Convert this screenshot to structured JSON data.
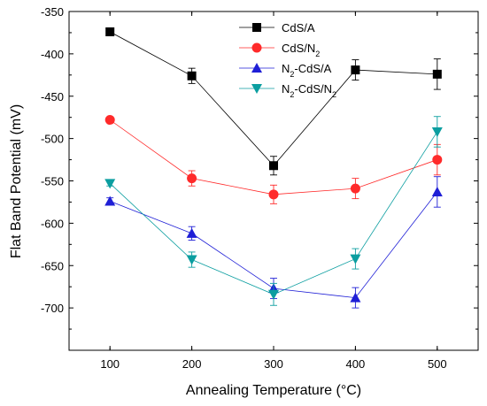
{
  "chart_data": {
    "type": "line",
    "xlabel": "Annealing Temperature (°C)",
    "ylabel": "Flat Band Potential (mV)",
    "x": [
      100,
      200,
      300,
      400,
      500
    ],
    "xlim": [
      50,
      550
    ],
    "ylim": [
      -750,
      -350
    ],
    "xticks": [
      100,
      200,
      300,
      400,
      500
    ],
    "yticks": [
      -350,
      -400,
      -450,
      -500,
      -550,
      -600,
      -650,
      -700
    ],
    "legend_position": "top-right",
    "series": [
      {
        "name": "CdS/A",
        "name_parts": [
          "CdS/A"
        ],
        "color": "#000000",
        "marker": "square",
        "values": [
          -374,
          -426,
          -532,
          -419,
          -424
        ],
        "errors": [
          4,
          9,
          11,
          12,
          18
        ]
      },
      {
        "name": "CdS/N2",
        "name_parts": [
          "CdS/N",
          "2",
          ""
        ],
        "color": "#ff2a2a",
        "marker": "circle",
        "values": [
          -478,
          -547,
          -566,
          -559,
          -525
        ],
        "errors": [
          3,
          9,
          11,
          12,
          18
        ]
      },
      {
        "name": "N2-CdS/A",
        "name_parts": [
          "N",
          "2",
          "-CdS/A"
        ],
        "color": "#1f1fd6",
        "marker": "triangle-up",
        "values": [
          -574,
          -612,
          -677,
          -688,
          -563
        ],
        "errors": [
          4,
          8,
          12,
          12,
          18
        ]
      },
      {
        "name": "N2-CdS/N2",
        "name_parts": [
          "N",
          "2",
          "-CdS/N2"
        ],
        "color": "#0b9ea0",
        "marker": "triangle-down",
        "values": [
          -553,
          -643,
          -684,
          -642,
          -492
        ],
        "errors": [
          3,
          9,
          13,
          12,
          18
        ]
      }
    ]
  }
}
